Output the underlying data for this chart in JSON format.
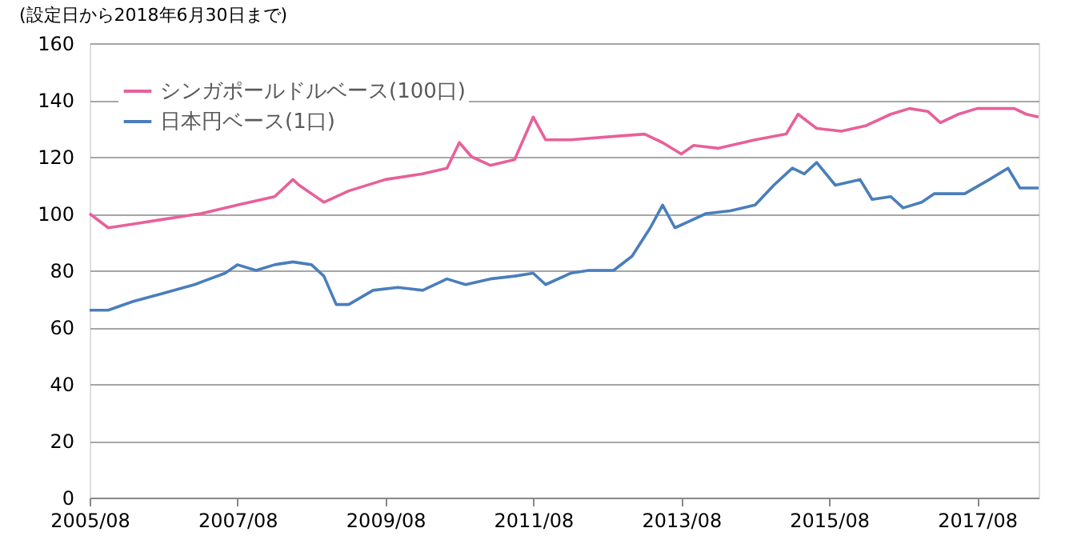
{
  "chart_data": {
    "type": "line",
    "annotations": [
      "(設定日から2018年6月30日まで)"
    ],
    "ylim": [
      0,
      160
    ],
    "yticks": [
      0,
      20,
      40,
      60,
      80,
      100,
      120,
      140,
      160
    ],
    "xlim": [
      "2005-08",
      "2018-06"
    ],
    "xticks": [
      {
        "value": "2005-08",
        "label": "2005/08"
      },
      {
        "value": "2007-08",
        "label": "2007/08"
      },
      {
        "value": "2009-08",
        "label": "2009/08"
      },
      {
        "value": "2011-08",
        "label": "2011/08"
      },
      {
        "value": "2013-08",
        "label": "2013/08"
      },
      {
        "value": "2015-08",
        "label": "2015/08"
      },
      {
        "value": "2017-08",
        "label": "2017/08"
      }
    ],
    "grid": "y",
    "legend": "top left",
    "line_style": "solid",
    "marker": "none",
    "series": [
      {
        "name": "シンガポールドルベース(100口)",
        "color": "#e8609a",
        "x": [
          "2005-08",
          "2005-11",
          "2006-02",
          "2006-08",
          "2007-02",
          "2007-08",
          "2008-02",
          "2008-05",
          "2008-06",
          "2008-10",
          "2009-02",
          "2009-08",
          "2010-02",
          "2010-06",
          "2010-08",
          "2010-10",
          "2011-01",
          "2011-05",
          "2011-08",
          "2011-10",
          "2012-02",
          "2012-08",
          "2013-02",
          "2013-05",
          "2013-08",
          "2013-10",
          "2014-02",
          "2014-08",
          "2015-01",
          "2015-03",
          "2015-06",
          "2015-10",
          "2016-02",
          "2016-06",
          "2016-09",
          "2016-12",
          "2017-02",
          "2017-05",
          "2017-08",
          "2017-12",
          "2018-02",
          "2018-04",
          "2018-06"
        ],
        "values": [
          100,
          95,
          96,
          98,
          100,
          103,
          106,
          112,
          110,
          104,
          108,
          112,
          114,
          116,
          125,
          120,
          117,
          119,
          134,
          126,
          126,
          127,
          128,
          125,
          121,
          124,
          123,
          126,
          128,
          135,
          130,
          129,
          131,
          135,
          137,
          136,
          132,
          135,
          137,
          137,
          137,
          135,
          134
        ]
      },
      {
        "name": "日本円ベース(1口)",
        "color": "#4a7ebb",
        "x": [
          "2005-08",
          "2005-11",
          "2006-03",
          "2006-08",
          "2007-01",
          "2007-06",
          "2007-08",
          "2007-11",
          "2008-02",
          "2008-05",
          "2008-08",
          "2008-10",
          "2008-12",
          "2009-02",
          "2009-06",
          "2009-10",
          "2010-02",
          "2010-06",
          "2010-09",
          "2011-01",
          "2011-05",
          "2011-08",
          "2011-10",
          "2012-02",
          "2012-05",
          "2012-09",
          "2012-12",
          "2013-03",
          "2013-05",
          "2013-07",
          "2013-09",
          "2013-12",
          "2014-04",
          "2014-08",
          "2014-11",
          "2015-02",
          "2015-04",
          "2015-06",
          "2015-09",
          "2016-01",
          "2016-03",
          "2016-06",
          "2016-08",
          "2016-11",
          "2017-01",
          "2017-06",
          "2017-10",
          "2018-01",
          "2018-03",
          "2018-06"
        ],
        "values": [
          66,
          66,
          69,
          72,
          75,
          79,
          82,
          80,
          82,
          83,
          82,
          78,
          68,
          68,
          73,
          74,
          73,
          77,
          75,
          77,
          78,
          79,
          75,
          79,
          80,
          80,
          85,
          95,
          103,
          95,
          97,
          100,
          101,
          103,
          110,
          116,
          114,
          118,
          110,
          112,
          105,
          106,
          102,
          104,
          107,
          107,
          112,
          116,
          109,
          109
        ]
      }
    ]
  }
}
